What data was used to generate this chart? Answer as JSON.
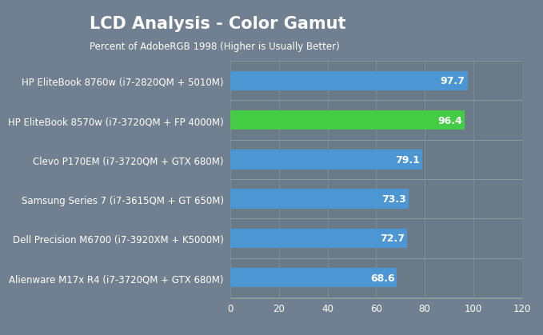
{
  "title": "LCD Analysis - Color Gamut",
  "subtitle": "Percent of AdobeRGB 1998 (Higher is Usually Better)",
  "categories": [
    "HP EliteBook 8760w (i7-2820QM + 5010M)",
    "HP EliteBook 8570w (i7-3720QM + FP 4000M)",
    "Clevo P170EM (i7-3720QM + GTX 680M)",
    "Samsung Series 7 (i7-3615QM + GT 650M)",
    "Dell Precision M6700 (i7-3920XM + K5000M)",
    "Alienware M17x R4 (i7-3720QM + GTX 680M)"
  ],
  "values": [
    97.7,
    96.4,
    79.1,
    73.3,
    72.7,
    68.6
  ],
  "bar_colors": [
    "#4d96d4",
    "#44cc44",
    "#4d96d4",
    "#4d96d4",
    "#4d96d4",
    "#4d96d4"
  ],
  "header_bg": "#e8a020",
  "title_color": "#ffffff",
  "subtitle_color": "#ffffff",
  "chart_bg": "#718090",
  "plot_bg": "#6a7a88",
  "bar_label_color": "#ffffff",
  "category_color": "#ffffff",
  "tick_color": "#ffffff",
  "grid_color": "#7d9090",
  "separator_color": "#8a9aa0",
  "xlim": [
    0,
    120
  ],
  "xticks": [
    0,
    20,
    40,
    60,
    80,
    100,
    120
  ],
  "title_fontsize": 15,
  "subtitle_fontsize": 8.5,
  "bar_label_fontsize": 9,
  "tick_fontsize": 8.5,
  "category_fontsize": 8.5,
  "bar_height": 0.5
}
